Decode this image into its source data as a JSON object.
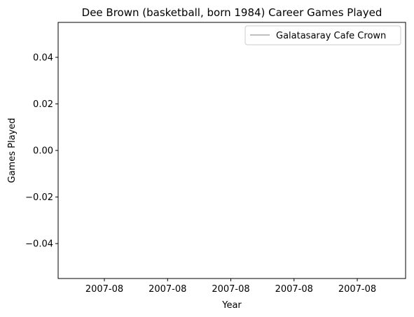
{
  "chart_data": {
    "type": "line",
    "title": "Dee Brown (basketball, born 1984) Career Games Played",
    "xlabel": "Year",
    "ylabel": "Games Played",
    "x_tick_labels": [
      "2007-08",
      "2007-08",
      "2007-08",
      "2007-08",
      "2007-08"
    ],
    "y_ticks": [
      0.04,
      0.02,
      0.0,
      -0.02,
      -0.04
    ],
    "y_tick_labels": [
      "0.04",
      "0.02",
      "0.00",
      "−0.02",
      "−0.04"
    ],
    "ylim": [
      -0.055,
      0.055
    ],
    "grid": false,
    "legend_position": "top-right",
    "series": [
      {
        "name": "Galatasaray Cafe Crown",
        "color": "#bfbfbf",
        "x": [],
        "y": []
      }
    ]
  }
}
